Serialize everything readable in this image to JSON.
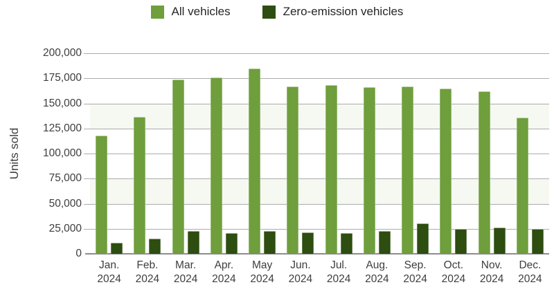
{
  "legend": {
    "items": [
      {
        "label": "All vehicles",
        "color": "#6f9e3c"
      },
      {
        "label": "Zero-emission vehicles",
        "color": "#2d4d11"
      }
    ]
  },
  "chart_data": {
    "type": "bar",
    "title": "",
    "xlabel": "",
    "ylabel": "Units sold",
    "ylim": [
      0,
      200000
    ],
    "ytick_interval": 25000,
    "ytick_labels": [
      "0",
      "25,000",
      "50,000",
      "75,000",
      "100,000",
      "125,000",
      "150,000",
      "175,000",
      "200,000"
    ],
    "grid": true,
    "legend_position": "top-center",
    "background_bands": [
      [
        150000,
        125000
      ],
      [
        75000,
        50000
      ]
    ],
    "categories": [
      {
        "month": "Jan.",
        "year": "2024"
      },
      {
        "month": "Feb.",
        "year": "2024"
      },
      {
        "month": "Mar.",
        "year": "2024"
      },
      {
        "month": "Apr.",
        "year": "2024"
      },
      {
        "month": "May",
        "year": "2024"
      },
      {
        "month": "Jun.",
        "year": "2024"
      },
      {
        "month": "Jul.",
        "year": "2024"
      },
      {
        "month": "Aug.",
        "year": "2024"
      },
      {
        "month": "Sep.",
        "year": "2024"
      },
      {
        "month": "Oct.",
        "year": "2024"
      },
      {
        "month": "Nov.",
        "year": "2024"
      },
      {
        "month": "Dec.",
        "year": "2024"
      }
    ],
    "series": [
      {
        "name": "All vehicles",
        "color": "#6f9e3c",
        "values": [
          118000,
          136500,
          174000,
          176000,
          185000,
          167000,
          168000,
          166000,
          167000,
          164500,
          162000,
          136000
        ]
      },
      {
        "name": "Zero-emission vehicles",
        "color": "#2d4d11",
        "values": [
          11000,
          15000,
          23000,
          20500,
          22500,
          21500,
          21000,
          23000,
          30500,
          25000,
          26500,
          24500
        ]
      }
    ]
  }
}
